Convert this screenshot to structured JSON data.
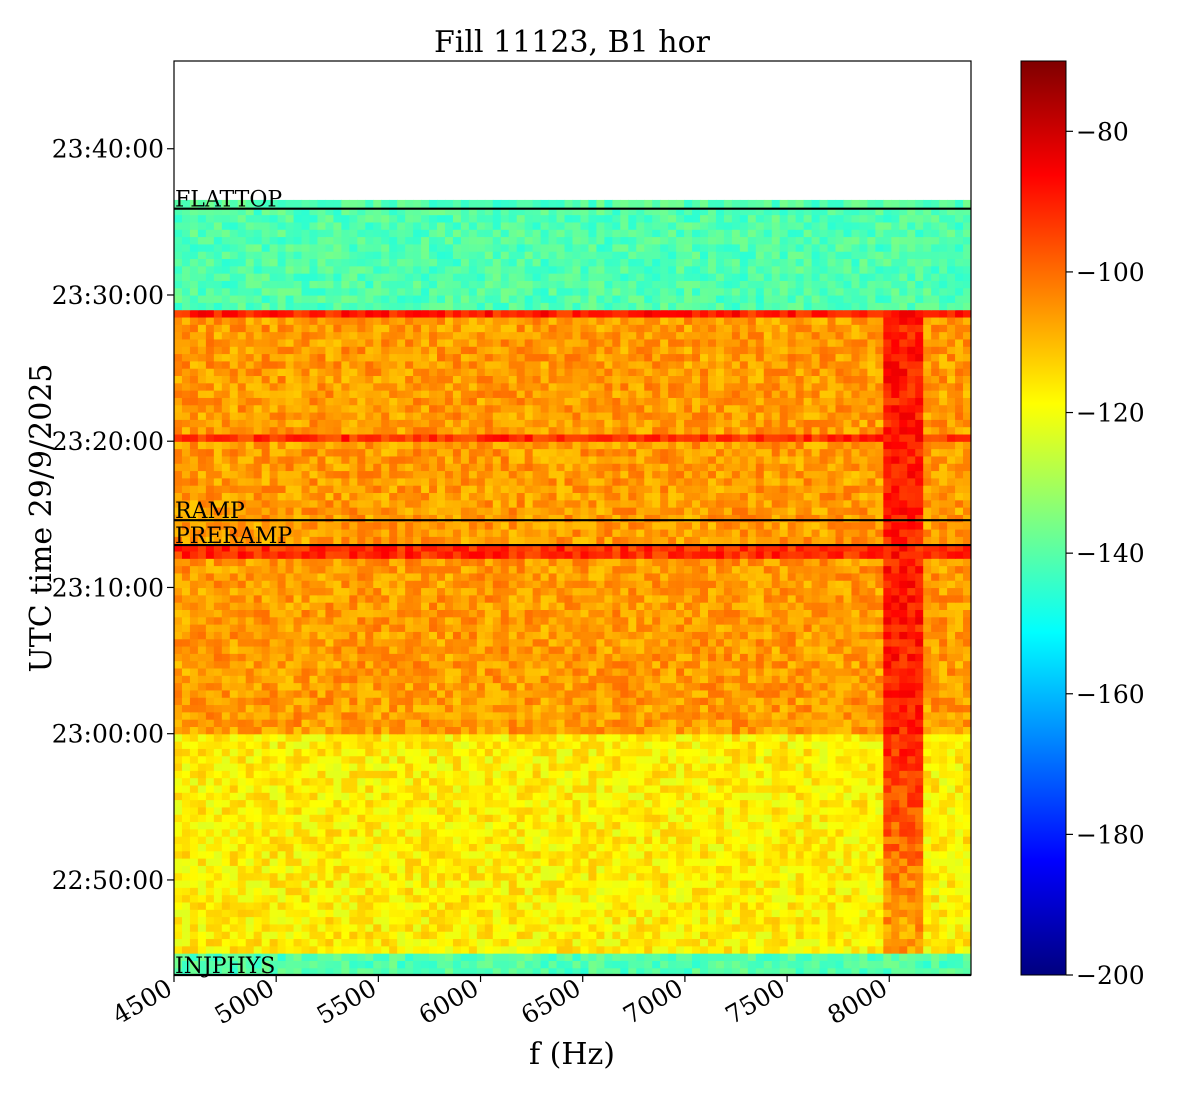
{
  "chart_data": {
    "type": "heatmap",
    "title": "Fill 11123, B1 hor",
    "xlabel": "f (Hz)",
    "ylabel": "UTC time 29/9/2025",
    "xlim": [
      4500,
      8400
    ],
    "ylim_minutes_after_22_00": [
      43.5,
      106
    ],
    "data_time_span_minutes_after_22_00": [
      43.5,
      96.5
    ],
    "x_ticks": [
      4500,
      5000,
      5500,
      6000,
      6500,
      7000,
      7500,
      8000
    ],
    "x_tick_labels": [
      "4500",
      "5000",
      "5500",
      "6000",
      "6500",
      "7000",
      "7500",
      "8000"
    ],
    "y_ticks_minutes_after_22_00": [
      50,
      60,
      70,
      80,
      90,
      100
    ],
    "y_tick_labels": [
      "22:50:00",
      "23:00:00",
      "23:10:00",
      "23:20:00",
      "23:30:00",
      "23:40:00"
    ],
    "colormap": "jet",
    "colorbar": {
      "range": [
        -200,
        -70
      ],
      "ticks": [
        -200,
        -180,
        -160,
        -140,
        -120,
        -100,
        -80
      ],
      "tick_labels": [
        "−200",
        "−180",
        "−160",
        "−140",
        "−120",
        "−100",
        "−80"
      ]
    },
    "regions": [
      {
        "from_min": 43.5,
        "to_min": 45,
        "level_db": -141
      },
      {
        "from_min": 45,
        "to_min": 60,
        "level_db": -117
      },
      {
        "from_min": 60,
        "to_min": 88.8,
        "level_db": -106
      },
      {
        "from_min": 88.8,
        "to_min": 96.5,
        "level_db": -141
      }
    ],
    "features": [
      {
        "kind": "hot_band_freq",
        "from_hz": 7980,
        "to_hz": 8150,
        "level_db": -88
      },
      {
        "kind": "hot_row_time",
        "at_min": 88.7,
        "level_db": -90
      },
      {
        "kind": "hot_row_time",
        "at_min": 80.3,
        "level_db": -92
      },
      {
        "kind": "hot_row_time",
        "at_min": 72.5,
        "level_db": -92
      }
    ],
    "annotations": [
      {
        "label": "FLATTOP",
        "time_min": 95.9
      },
      {
        "label": "RAMP",
        "time_min": 74.6
      },
      {
        "label": "PRERAMP",
        "time_min": 72.9
      },
      {
        "label": "INJPHYS",
        "time_min": 43.5
      }
    ]
  }
}
